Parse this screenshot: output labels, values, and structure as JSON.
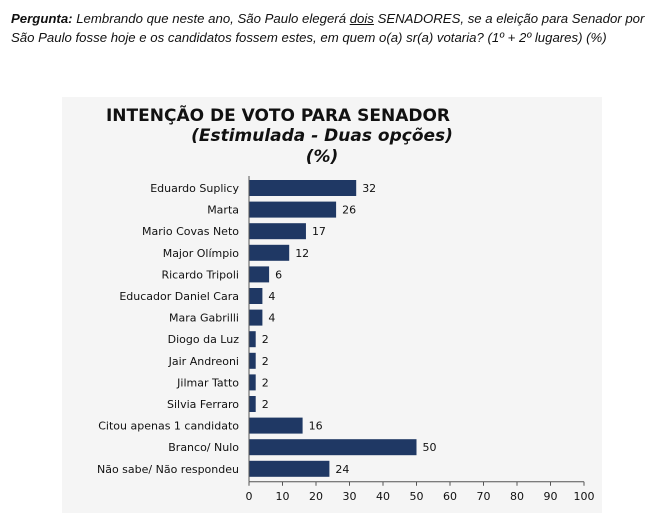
{
  "question": {
    "prefix": "Pergunta:",
    "text_before": " Lembrando que neste ano, São Paulo elegerá ",
    "underlined": "dois",
    "text_after": " SENADORES, se a eleição para Senador por São Paulo fosse hoje e os candidatos fossem estes, em quem o(a) sr(a) votaria? (1º + 2º lugares) (%)"
  },
  "chart_data": {
    "type": "bar",
    "orientation": "horizontal",
    "title": "INTENÇÃO DE VOTO PARA SENADOR",
    "subtitle": "(Estimulada - Duas opções)",
    "unit": "(%)",
    "categories": [
      "Eduardo Suplicy",
      "Marta",
      "Mario Covas Neto",
      "Major Olímpio",
      "Ricardo Tripoli",
      "Educador Daniel Cara",
      "Mara Gabrilli",
      "Diogo da Luz",
      "Jair Andreoni",
      "Jilmar Tatto",
      "Silvia Ferraro",
      "Citou apenas 1 candidato",
      "Branco/ Nulo",
      "Não sabe/ Não respondeu"
    ],
    "values": [
      32,
      26,
      17,
      12,
      6,
      4,
      4,
      2,
      2,
      2,
      2,
      16,
      50,
      24
    ],
    "xlim": [
      0,
      100
    ],
    "xticks": [
      0,
      10,
      20,
      30,
      40,
      50,
      60,
      70,
      80,
      90,
      100
    ],
    "bar_color": "#1f3864",
    "grid": false,
    "legend": "none"
  }
}
